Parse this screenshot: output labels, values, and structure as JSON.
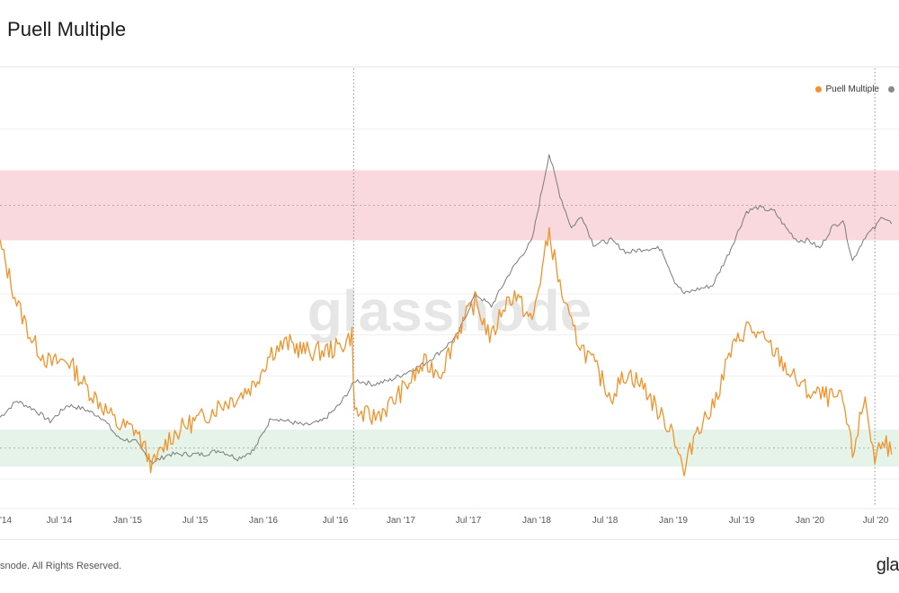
{
  "header": {
    "title": "Puell Multiple"
  },
  "footer": {
    "copyright": "snode. All Rights Reserved.",
    "logo_text": "gla"
  },
  "watermark": "glassnode",
  "colors": {
    "puell": "#F0932B",
    "price": "#7a7a7a",
    "red_band": "#F9D9DE",
    "green_band": "#E5F3E8"
  },
  "legend": [
    {
      "label": "Puell Multiple",
      "color": "#F0932B"
    },
    {
      "label": "",
      "color": "#8a8a8a"
    }
  ],
  "chart_data": {
    "type": "line",
    "title": "Puell Multiple",
    "x_ticks": [
      "'14",
      "Jul '14",
      "Jan '15",
      "Jul '15",
      "Jan '16",
      "Jul '16",
      "Jan '17",
      "Jul '17",
      "Jan '18",
      "Jul '18",
      "Jan '19",
      "Jul '19",
      "Jan '20",
      "Jul '20"
    ],
    "x_range": [
      "2013-12-01",
      "2020-07-15"
    ],
    "y_range_relative": [
      0,
      1
    ],
    "bands": [
      {
        "name": "red",
        "from": 0.63,
        "to": 0.8
      },
      {
        "name": "green",
        "from": 0.08,
        "to": 0.17
      }
    ],
    "reference_lines": [
      {
        "axis": "x",
        "value": "2016-07-09"
      },
      {
        "axis": "x",
        "value": "2020-05-11"
      }
    ],
    "grid": true,
    "legend_position": "top-right",
    "series": [
      {
        "name": "Puell Multiple",
        "points": [
          [
            "2013-12-01",
            0.62
          ],
          [
            "2014-01-15",
            0.48
          ],
          [
            "2014-03-01",
            0.38
          ],
          [
            "2014-04-15",
            0.33
          ],
          [
            "2014-06-01",
            0.34
          ],
          [
            "2014-07-15",
            0.28
          ],
          [
            "2014-09-01",
            0.23
          ],
          [
            "2014-10-15",
            0.18
          ],
          [
            "2014-12-01",
            0.17
          ],
          [
            "2015-01-01",
            0.11
          ],
          [
            "2015-01-15",
            0.08
          ],
          [
            "2015-03-01",
            0.15
          ],
          [
            "2015-04-15",
            0.18
          ],
          [
            "2015-06-01",
            0.2
          ],
          [
            "2015-07-15",
            0.23
          ],
          [
            "2015-09-01",
            0.25
          ],
          [
            "2015-10-15",
            0.28
          ],
          [
            "2015-12-01",
            0.36
          ],
          [
            "2016-01-15",
            0.38
          ],
          [
            "2016-03-01",
            0.36
          ],
          [
            "2016-04-15",
            0.36
          ],
          [
            "2016-06-01",
            0.37
          ],
          [
            "2016-07-05",
            0.4
          ],
          [
            "2016-07-12",
            0.21
          ],
          [
            "2016-09-01",
            0.2
          ],
          [
            "2016-10-15",
            0.23
          ],
          [
            "2016-12-01",
            0.28
          ],
          [
            "2017-01-15",
            0.33
          ],
          [
            "2017-03-01",
            0.31
          ],
          [
            "2017-04-15",
            0.41
          ],
          [
            "2017-06-01",
            0.48
          ],
          [
            "2017-07-15",
            0.39
          ],
          [
            "2017-08-15",
            0.47
          ],
          [
            "2017-09-15",
            0.5
          ],
          [
            "2017-11-01",
            0.43
          ],
          [
            "2017-12-17",
            0.65
          ],
          [
            "2018-01-15",
            0.52
          ],
          [
            "2018-02-15",
            0.42
          ],
          [
            "2018-03-15",
            0.37
          ],
          [
            "2018-04-15",
            0.33
          ],
          [
            "2018-06-01",
            0.25
          ],
          [
            "2018-07-15",
            0.31
          ],
          [
            "2018-09-01",
            0.27
          ],
          [
            "2018-10-15",
            0.2
          ],
          [
            "2018-11-15",
            0.17
          ],
          [
            "2018-12-15",
            0.06
          ],
          [
            "2019-01-15",
            0.17
          ],
          [
            "2019-03-01",
            0.22
          ],
          [
            "2019-04-15",
            0.35
          ],
          [
            "2019-06-01",
            0.42
          ],
          [
            "2019-07-01",
            0.4
          ],
          [
            "2019-08-15",
            0.36
          ],
          [
            "2019-10-01",
            0.3
          ],
          [
            "2019-11-15",
            0.26
          ],
          [
            "2020-01-01",
            0.25
          ],
          [
            "2020-02-15",
            0.24
          ],
          [
            "2020-03-12",
            0.11
          ],
          [
            "2020-04-15",
            0.25
          ],
          [
            "2020-05-11",
            0.09
          ],
          [
            "2020-06-01",
            0.16
          ],
          [
            "2020-06-25",
            0.11
          ]
        ]
      },
      {
        "name": "",
        "points": [
          [
            "2013-12-01",
            0.2
          ],
          [
            "2014-01-15",
            0.24
          ],
          [
            "2014-03-01",
            0.22
          ],
          [
            "2014-04-15",
            0.19
          ],
          [
            "2014-06-01",
            0.23
          ],
          [
            "2014-07-15",
            0.22
          ],
          [
            "2014-09-01",
            0.2
          ],
          [
            "2014-10-15",
            0.15
          ],
          [
            "2014-12-01",
            0.14
          ],
          [
            "2015-01-15",
            0.09
          ],
          [
            "2015-03-01",
            0.11
          ],
          [
            "2015-04-15",
            0.11
          ],
          [
            "2015-06-01",
            0.11
          ],
          [
            "2015-07-15",
            0.12
          ],
          [
            "2015-09-01",
            0.1
          ],
          [
            "2015-10-15",
            0.12
          ],
          [
            "2015-12-01",
            0.2
          ],
          [
            "2016-01-15",
            0.19
          ],
          [
            "2016-03-01",
            0.18
          ],
          [
            "2016-04-15",
            0.19
          ],
          [
            "2016-06-01",
            0.23
          ],
          [
            "2016-07-15",
            0.29
          ],
          [
            "2016-09-01",
            0.28
          ],
          [
            "2016-10-15",
            0.29
          ],
          [
            "2016-12-01",
            0.31
          ],
          [
            "2017-01-15",
            0.33
          ],
          [
            "2017-03-01",
            0.36
          ],
          [
            "2017-04-15",
            0.4
          ],
          [
            "2017-06-01",
            0.5
          ],
          [
            "2017-07-15",
            0.47
          ],
          [
            "2017-09-01",
            0.55
          ],
          [
            "2017-11-01",
            0.63
          ],
          [
            "2017-12-17",
            0.84
          ],
          [
            "2018-01-15",
            0.74
          ],
          [
            "2018-02-15",
            0.66
          ],
          [
            "2018-03-15",
            0.69
          ],
          [
            "2018-04-15",
            0.62
          ],
          [
            "2018-06-01",
            0.63
          ],
          [
            "2018-07-15",
            0.6
          ],
          [
            "2018-09-01",
            0.61
          ],
          [
            "2018-10-15",
            0.61
          ],
          [
            "2018-11-20",
            0.53
          ],
          [
            "2018-12-15",
            0.5
          ],
          [
            "2019-01-15",
            0.51
          ],
          [
            "2019-03-01",
            0.52
          ],
          [
            "2019-04-15",
            0.6
          ],
          [
            "2019-06-01",
            0.7
          ],
          [
            "2019-07-01",
            0.71
          ],
          [
            "2019-08-15",
            0.7
          ],
          [
            "2019-09-15",
            0.66
          ],
          [
            "2019-10-15",
            0.63
          ],
          [
            "2019-11-15",
            0.63
          ],
          [
            "2019-12-15",
            0.61
          ],
          [
            "2020-01-15",
            0.66
          ],
          [
            "2020-02-15",
            0.68
          ],
          [
            "2020-03-12",
            0.58
          ],
          [
            "2020-04-15",
            0.64
          ],
          [
            "2020-05-11",
            0.66
          ],
          [
            "2020-06-01",
            0.69
          ],
          [
            "2020-06-25",
            0.67
          ]
        ]
      }
    ]
  }
}
